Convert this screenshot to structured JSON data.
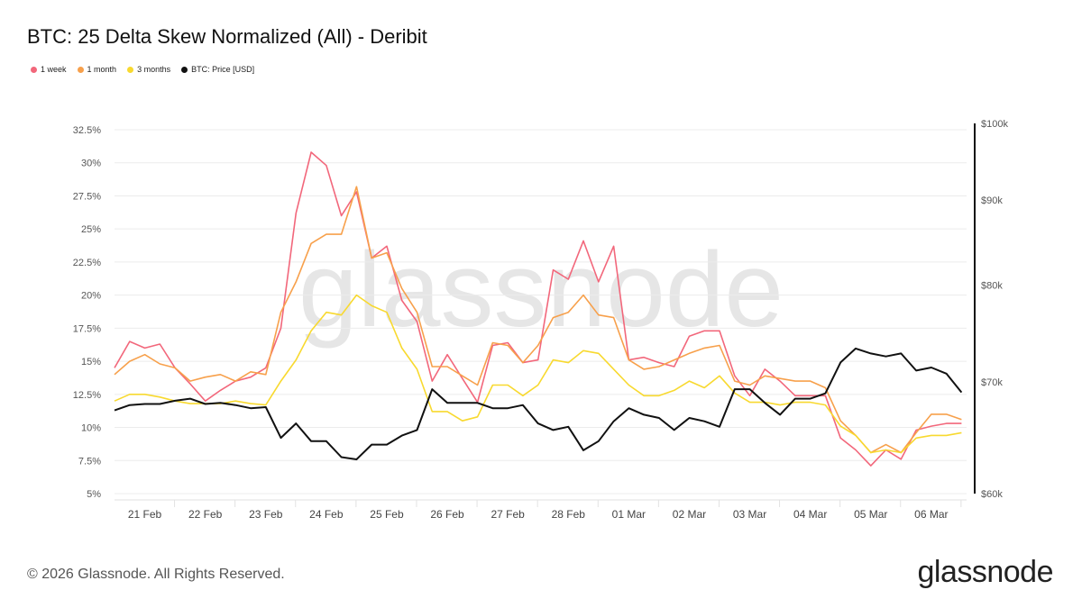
{
  "title": "BTC: 25 Delta Skew Normalized (All) - Deribit",
  "footer": "© 2026 Glassnode. All Rights Reserved.",
  "logo": "glassnode",
  "watermark": "glassnode",
  "colors": {
    "1w": "#f2677b",
    "1m": "#f7a04b",
    "3m": "#f8d92f",
    "price": "#111111",
    "grid": "#ececec"
  },
  "chart_data": {
    "type": "line",
    "title": "BTC: 25 Delta Skew Normalized (All) - Deribit",
    "legend_position": "top-left",
    "grid": true,
    "x_tick_labels": [
      "21 Feb",
      "22 Feb",
      "23 Feb",
      "24 Feb",
      "25 Feb",
      "26 Feb",
      "27 Feb",
      "28 Feb",
      "01 Mar",
      "02 Mar",
      "03 Mar",
      "04 Mar",
      "05 Mar",
      "06 Mar"
    ],
    "x_tick_dates": [
      "2026-02-21",
      "2026-02-22",
      "2026-02-23",
      "2026-02-24",
      "2026-02-25",
      "2026-02-26",
      "2026-02-27",
      "2026-02-28",
      "2026-03-01",
      "2026-03-02",
      "2026-03-03",
      "2026-03-04",
      "2026-03-05",
      "2026-03-06"
    ],
    "xlim": [
      "2026-02-20T12:00",
      "2026-03-06T14:00"
    ],
    "y_left": {
      "ticks": [
        5,
        7.5,
        10,
        12.5,
        15,
        17.5,
        20,
        22.5,
        25,
        27.5,
        30,
        32.5
      ],
      "tick_labels": [
        "5%",
        "7.5%",
        "10%",
        "12.5%",
        "15%",
        "17.5%",
        "20%",
        "22.5%",
        "25%",
        "27.5%",
        "30%",
        "32.5%"
      ],
      "lim": [
        5,
        32.5
      ],
      "scale": "linear"
    },
    "y_right": {
      "ticks": [
        60000,
        70000,
        80000,
        90000,
        100000
      ],
      "tick_labels": [
        "$60k",
        "$70k",
        "$80k",
        "$90k",
        "$100k"
      ],
      "lim": [
        60000,
        100000
      ],
      "scale": "log"
    },
    "x": [
      "2026-02-20T12:00",
      "2026-02-20T18:00",
      "2026-02-21T00:00",
      "2026-02-21T06:00",
      "2026-02-21T12:00",
      "2026-02-21T18:00",
      "2026-02-22T00:00",
      "2026-02-22T06:00",
      "2026-02-22T12:00",
      "2026-02-22T18:00",
      "2026-02-23T00:00",
      "2026-02-23T06:00",
      "2026-02-23T12:00",
      "2026-02-23T18:00",
      "2026-02-24T00:00",
      "2026-02-24T06:00",
      "2026-02-24T12:00",
      "2026-02-24T18:00",
      "2026-02-25T00:00",
      "2026-02-25T06:00",
      "2026-02-25T12:00",
      "2026-02-25T18:00",
      "2026-02-26T00:00",
      "2026-02-26T06:00",
      "2026-02-26T12:00",
      "2026-02-26T18:00",
      "2026-02-27T00:00",
      "2026-02-27T06:00",
      "2026-02-27T12:00",
      "2026-02-27T18:00",
      "2026-02-28T00:00",
      "2026-02-28T06:00",
      "2026-02-28T12:00",
      "2026-02-28T18:00",
      "2026-03-01T00:00",
      "2026-03-01T06:00",
      "2026-03-01T12:00",
      "2026-03-01T18:00",
      "2026-03-02T00:00",
      "2026-03-02T06:00",
      "2026-03-02T12:00",
      "2026-03-02T18:00",
      "2026-03-03T00:00",
      "2026-03-03T06:00",
      "2026-03-03T12:00",
      "2026-03-03T18:00",
      "2026-03-04T00:00",
      "2026-03-04T06:00",
      "2026-03-04T12:00",
      "2026-03-04T18:00",
      "2026-03-05T00:00",
      "2026-03-05T06:00",
      "2026-03-05T12:00",
      "2026-03-05T18:00",
      "2026-03-06T00:00",
      "2026-03-06T06:00",
      "2026-03-06T12:00"
    ],
    "series": [
      {
        "name": "1 week",
        "axis": "left",
        "color_key": "1w",
        "values": [
          14.5,
          16.5,
          16.0,
          16.3,
          14.5,
          13.3,
          12.0,
          12.8,
          13.5,
          13.8,
          14.5,
          17.5,
          26.2,
          30.8,
          29.8,
          26.0,
          27.8,
          22.8,
          23.7,
          19.6,
          18.0,
          13.5,
          15.5,
          13.7,
          11.9,
          16.2,
          16.4,
          14.9,
          15.1,
          21.9,
          21.2,
          24.1,
          21.0,
          23.7,
          15.1,
          15.3,
          14.9,
          14.6,
          16.9,
          17.3,
          17.3,
          13.9,
          12.4,
          14.4,
          13.5,
          12.4,
          12.4,
          12.4,
          9.2,
          8.3,
          7.1,
          8.3,
          7.6,
          9.8,
          10.1,
          10.3,
          10.3
        ]
      },
      {
        "name": "1 month",
        "axis": "left",
        "color_key": "1m",
        "values": [
          14.0,
          15.0,
          15.5,
          14.8,
          14.5,
          13.5,
          13.8,
          14.0,
          13.5,
          14.2,
          14.0,
          18.7,
          21.0,
          23.9,
          24.6,
          24.6,
          28.2,
          22.8,
          23.2,
          20.5,
          18.7,
          14.6,
          14.6,
          13.9,
          13.2,
          16.4,
          16.2,
          14.9,
          16.2,
          18.3,
          18.7,
          20.0,
          18.5,
          18.3,
          15.1,
          14.4,
          14.6,
          15.1,
          15.6,
          16.0,
          16.2,
          13.5,
          13.2,
          13.9,
          13.7,
          13.5,
          13.5,
          13.0,
          10.5,
          9.4,
          8.1,
          8.7,
          8.1,
          9.6,
          11.0,
          11.0,
          10.6
        ]
      },
      {
        "name": "3 months",
        "axis": "left",
        "color_key": "3m",
        "values": [
          12.0,
          12.5,
          12.5,
          12.3,
          12.0,
          11.8,
          11.8,
          11.8,
          12.0,
          11.8,
          11.7,
          13.5,
          15.1,
          17.3,
          18.7,
          18.5,
          20.0,
          19.2,
          18.7,
          16.0,
          14.4,
          11.2,
          11.2,
          10.5,
          10.8,
          13.2,
          13.2,
          12.4,
          13.2,
          15.1,
          14.9,
          15.8,
          15.6,
          14.4,
          13.2,
          12.4,
          12.4,
          12.8,
          13.5,
          13.0,
          13.9,
          12.6,
          11.9,
          11.9,
          11.7,
          11.9,
          11.9,
          11.7,
          10.1,
          9.4,
          8.1,
          8.3,
          8.1,
          9.2,
          9.4,
          9.4,
          9.6
        ]
      },
      {
        "name": "BTC: Price [USD]",
        "axis": "right",
        "color_key": "price",
        "values": [
          67300,
          67800,
          67900,
          67900,
          68200,
          68400,
          67900,
          68000,
          67800,
          67500,
          67600,
          64800,
          66100,
          64500,
          64500,
          63100,
          62900,
          64200,
          64200,
          65000,
          65500,
          69300,
          68000,
          68000,
          68000,
          67500,
          67500,
          67800,
          66100,
          65500,
          65800,
          63700,
          64500,
          66300,
          67500,
          66900,
          66600,
          65500,
          66600,
          66300,
          65800,
          69300,
          69300,
          68000,
          66900,
          68400,
          68400,
          68900,
          71900,
          73300,
          72800,
          72500,
          72800,
          71100,
          71400,
          70800,
          69000
        ]
      }
    ]
  }
}
